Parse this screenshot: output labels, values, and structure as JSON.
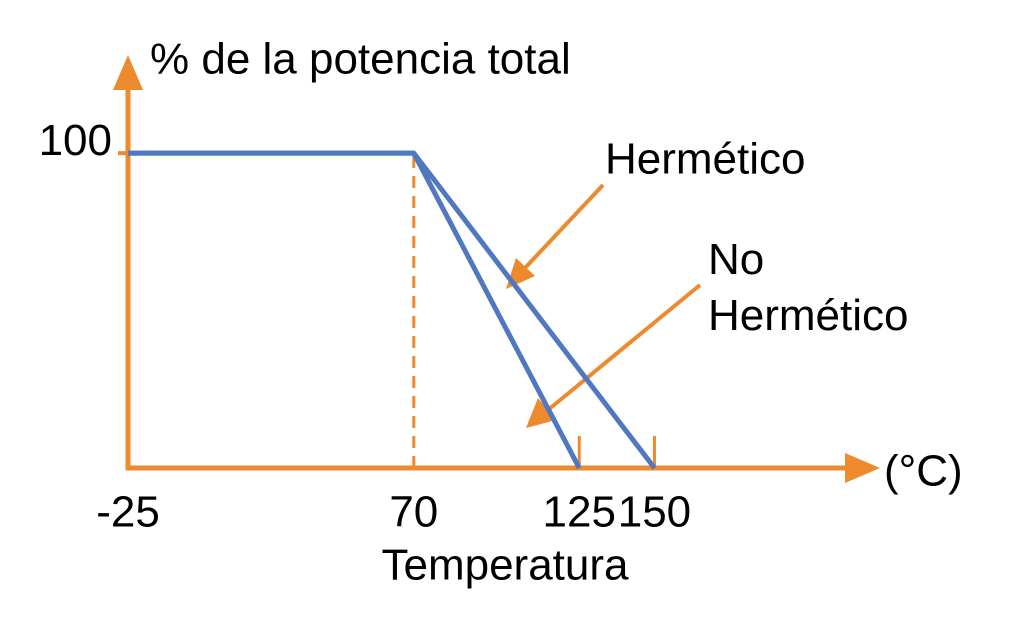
{
  "chart_data": {
    "type": "line",
    "y_label": "% de la potencia total",
    "x_label": "Temperatura",
    "x_unit": "(°C)",
    "xlim": [
      -25,
      215
    ],
    "xticks": [
      -25,
      70,
      125,
      150
    ],
    "ylim": [
      0,
      128
    ],
    "yticks": [
      100
    ],
    "axis_color": "#ee8a2e",
    "series": [
      {
        "name": "Hermético",
        "color": "#4f78c0",
        "x": [
          -25,
          70,
          150
        ],
        "values": [
          100,
          100,
          0
        ]
      },
      {
        "name": "No Hermético",
        "color": "#4f78c0",
        "x": [
          -25,
          70,
          125
        ],
        "values": [
          100,
          100,
          0
        ]
      }
    ]
  }
}
